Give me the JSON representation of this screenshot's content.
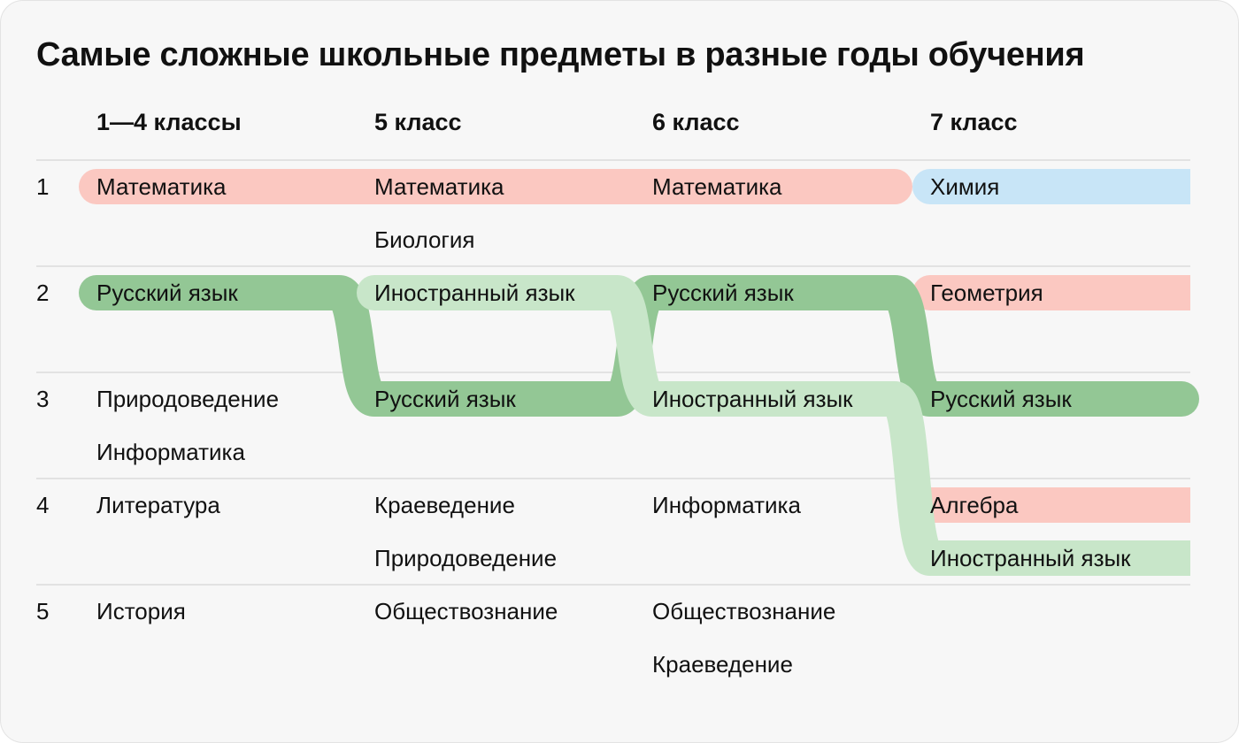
{
  "title": "Самые сложные школьные предметы в разные годы обучения",
  "chart_data": {
    "type": "table",
    "columns": [
      "1—4 классы",
      "5 класс",
      "6 класс",
      "7 класс"
    ],
    "ranks": [
      "1",
      "2",
      "3",
      "4",
      "5"
    ],
    "cells": [
      [
        [
          "Математика"
        ],
        [
          "Математика",
          "Биология"
        ],
        [
          "Математика"
        ],
        [
          "Химия"
        ]
      ],
      [
        [
          "Русский язык"
        ],
        [
          "Иностранный язык"
        ],
        [
          "Русский язык"
        ],
        [
          "Геометрия"
        ]
      ],
      [
        [
          "Природоведение",
          "Информатика"
        ],
        [
          "Русский язык"
        ],
        [
          "Иностранный язык"
        ],
        [
          "Русский язык"
        ]
      ],
      [
        [
          "Литература"
        ],
        [
          "Краеведение",
          "Природоведение"
        ],
        [
          "Информатика"
        ],
        [
          "Алгебра",
          "Иностранный язык"
        ]
      ],
      [
        [
          "История"
        ],
        [
          "Обществознание"
        ],
        [
          "Обществознание",
          "Краеведение"
        ],
        []
      ]
    ],
    "tracked_subjects": [
      {
        "subject": "Математика",
        "color": "#fbc8c1",
        "positions": [
          [
            1,
            0
          ],
          [
            1,
            0
          ],
          [
            1,
            0
          ]
        ]
      },
      {
        "subject": "Русский язык",
        "color": "#93c795",
        "positions": [
          [
            2,
            0
          ],
          [
            3,
            0
          ],
          [
            2,
            0
          ],
          [
            3,
            0
          ]
        ]
      },
      {
        "subject": "Иностранный язык",
        "color": "#c8e6c9",
        "positions": [
          null,
          [
            2,
            0
          ],
          [
            3,
            0
          ],
          [
            4,
            1
          ]
        ]
      }
    ],
    "single_highlights": [
      {
        "column": 3,
        "rank": 1,
        "line": 0,
        "color": "#c8e5f7"
      },
      {
        "column": 3,
        "rank": 2,
        "line": 0,
        "color": "#fbc8c1"
      },
      {
        "column": 3,
        "rank": 4,
        "line": 0,
        "color": "#fbc8c1"
      }
    ]
  }
}
